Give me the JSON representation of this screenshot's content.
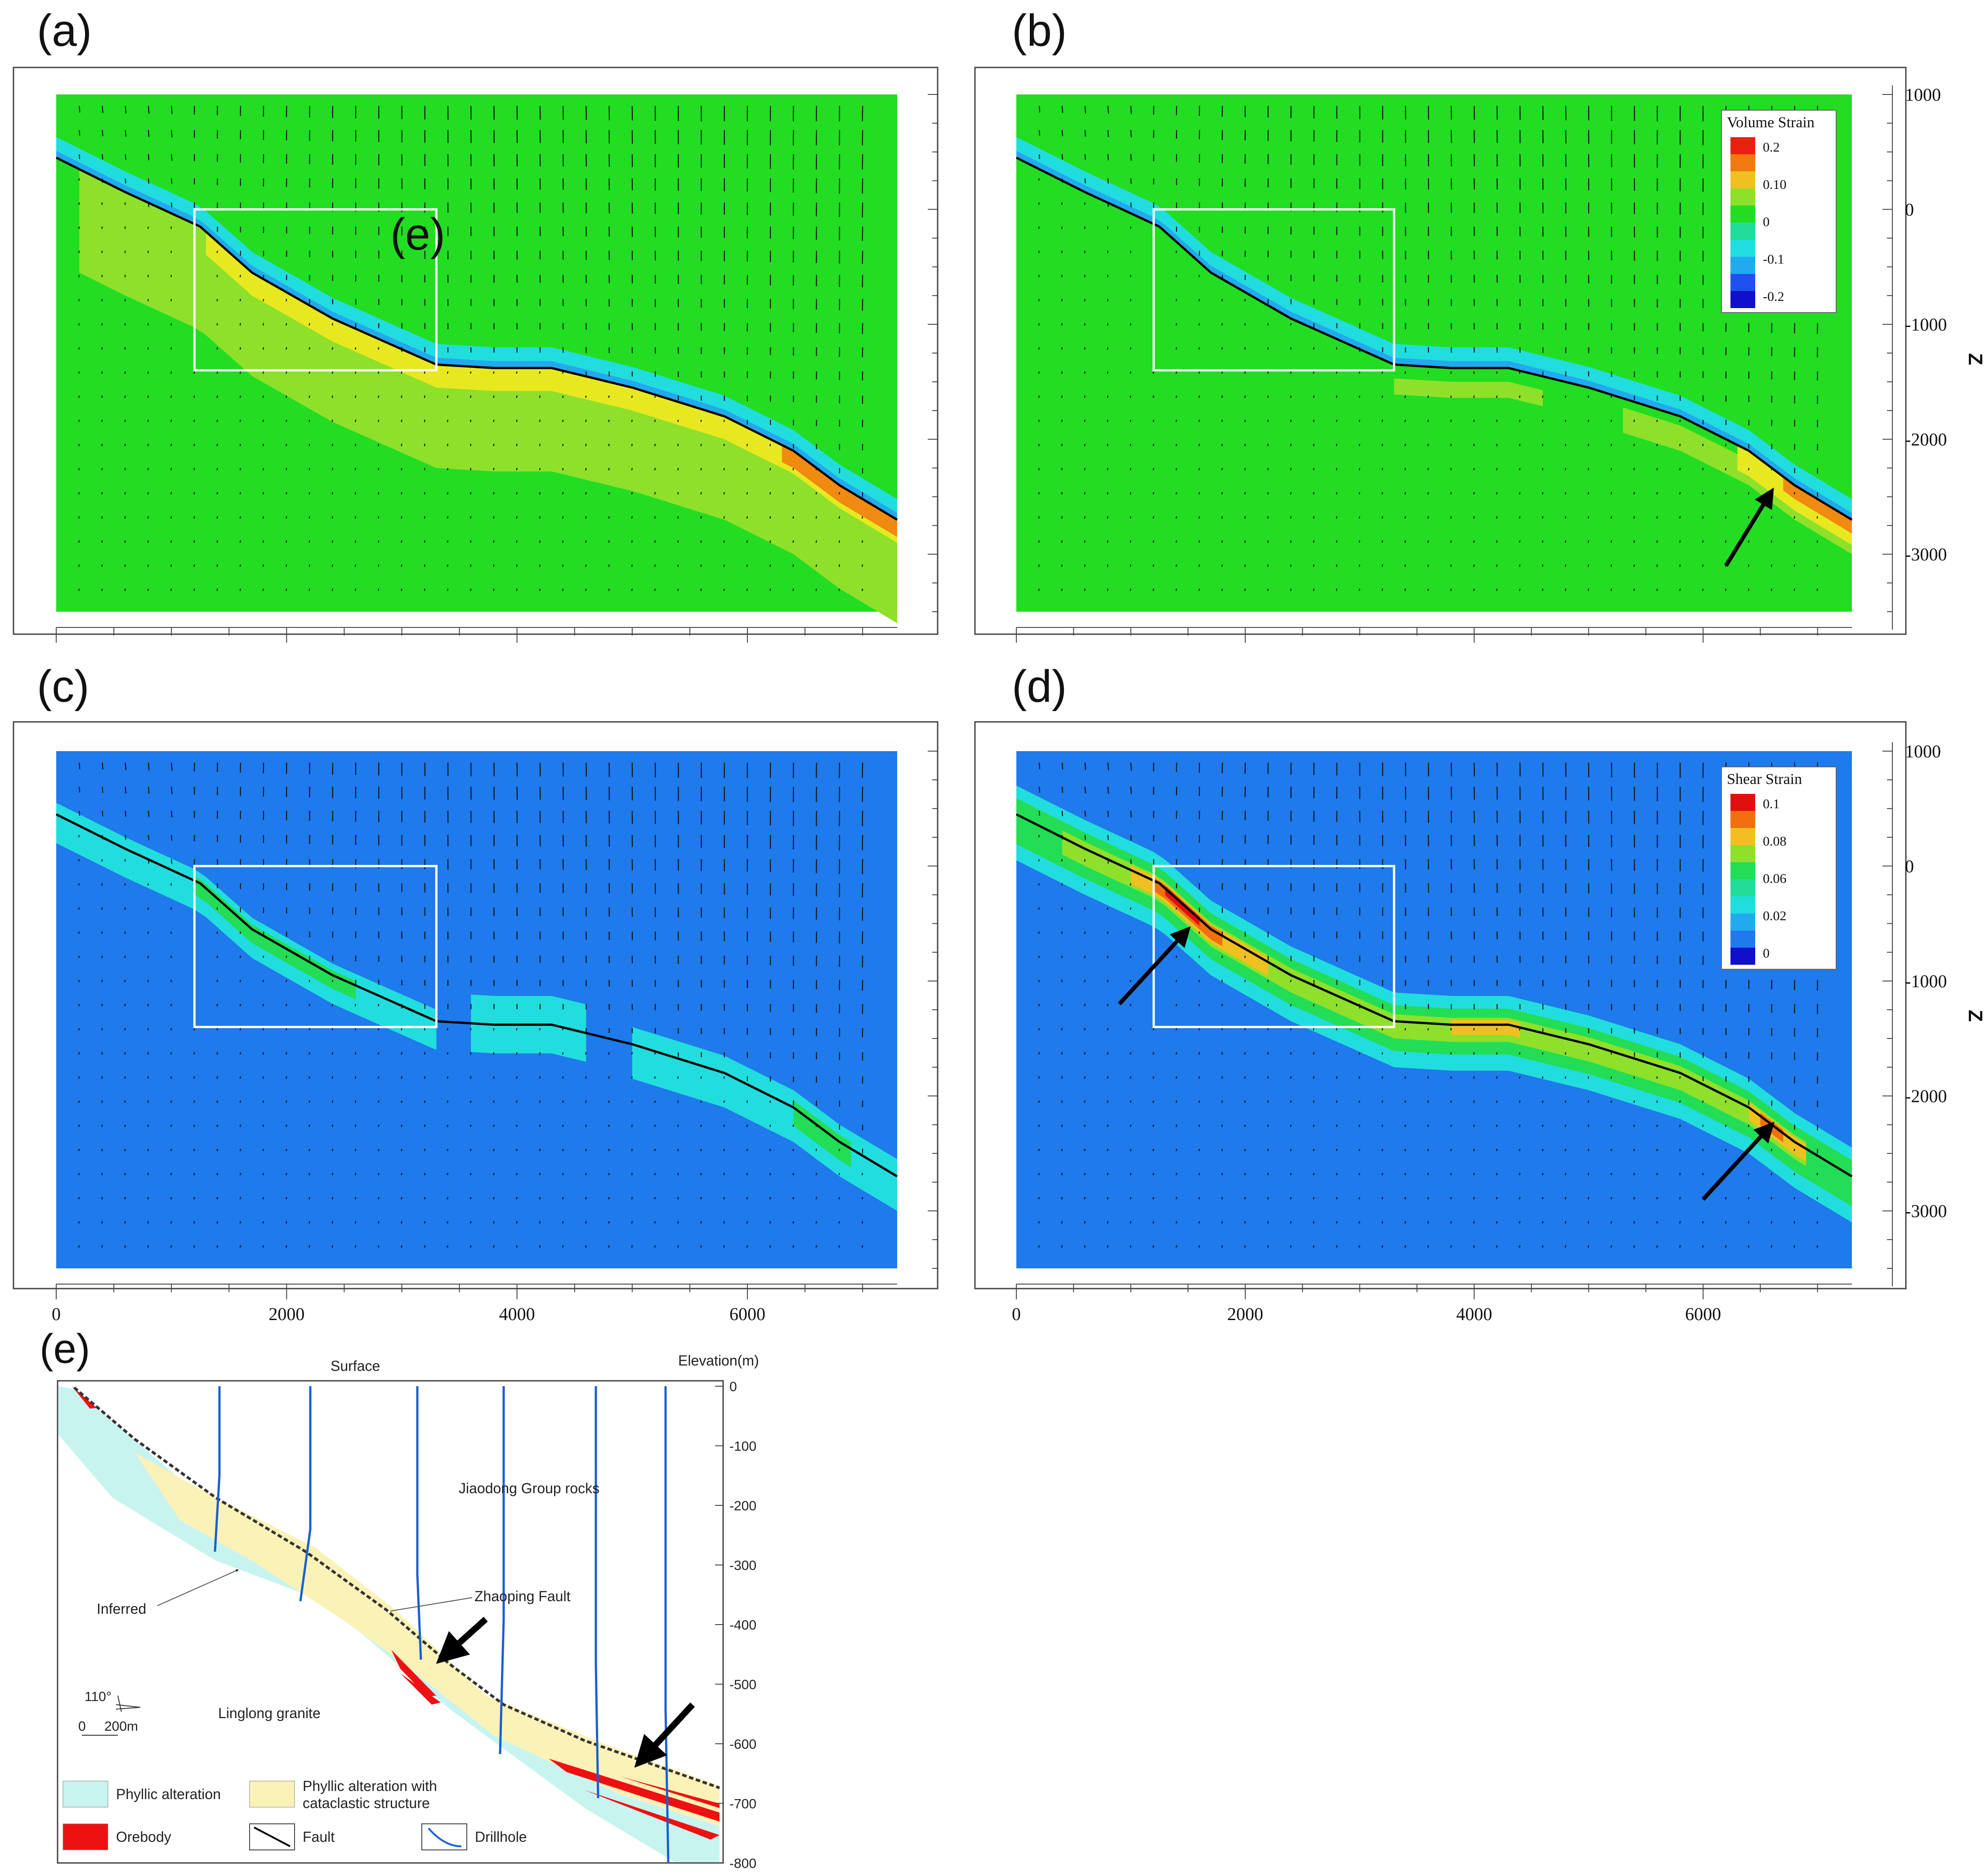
{
  "panels": [
    {
      "id": "a",
      "label": "(a)",
      "field": "volume",
      "inset_label": "(e)",
      "show_x_ticks": false,
      "show_z_ticks": false,
      "legend": null,
      "arrows": []
    },
    {
      "id": "b",
      "label": "(b)",
      "field": "volume",
      "inset_label": "",
      "show_x_ticks": false,
      "show_z_ticks": true,
      "legend": {
        "title": "Volume Strain",
        "values": [
          "0.2",
          "0.10",
          "0",
          "-0.1",
          "-0.2"
        ]
      },
      "arrows": [
        {
          "from": [
            6200,
            -3100
          ],
          "to": [
            6600,
            -2450
          ]
        }
      ]
    },
    {
      "id": "c",
      "label": "(c)",
      "field": "shear_low",
      "inset_label": "",
      "show_x_ticks": true,
      "show_z_ticks": false,
      "legend": null,
      "arrows": []
    },
    {
      "id": "d",
      "label": "(d)",
      "field": "shear",
      "inset_label": "",
      "show_x_ticks": true,
      "show_z_ticks": true,
      "legend": {
        "title": "Shear Strain",
        "values": [
          "0.1",
          "0.08",
          "0.06",
          "0.02",
          "0"
        ]
      },
      "arrows": [
        {
          "from": [
            900,
            -1200
          ],
          "to": [
            1500,
            -550
          ]
        },
        {
          "from": [
            6000,
            -2900
          ],
          "to": [
            6600,
            -2250
          ]
        }
      ]
    }
  ],
  "x_ticks": [
    "0",
    "2000",
    "4000",
    "6000"
  ],
  "z_ticks": [
    "1000",
    "0",
    "-1000",
    "-2000",
    "-3000"
  ],
  "z_axis_label": "Z",
  "colors": {
    "volume": {
      "bg": "#22dd22",
      "comp_pos": "#8ee02a",
      "comp_yel": "#e8e820",
      "comp_org": "#f08a10",
      "comp_red": "#e82010",
      "neg_cyan": "#22dddd",
      "neg_blue": "#22aaee"
    },
    "shear": {
      "bg": "#1f7aeb",
      "c1": "#22dddd",
      "c2": "#22dd55",
      "c3": "#8ee02a",
      "c4": "#f0c020",
      "c5": "#f07010",
      "c6": "#e01010"
    },
    "legend_volume": [
      "#e82010",
      "#f07a10",
      "#f0c020",
      "#8ee02a",
      "#22dd22",
      "#22dd99",
      "#22dddd",
      "#22aaee",
      "#2050ee",
      "#1010cc"
    ],
    "legend_shear": [
      "#e01010",
      "#f07010",
      "#f0c020",
      "#8ee02a",
      "#22dd55",
      "#22dd99",
      "#22dddd",
      "#22aaee",
      "#1f7aeb",
      "#1010cc"
    ]
  },
  "panel_e": {
    "label": "(e)",
    "surface": "Surface",
    "elevation_label": "Elevation(m)",
    "elevation_ticks": [
      "0",
      "-100",
      "-200",
      "-300",
      "-400",
      "-500",
      "-600",
      "-700",
      "-800"
    ],
    "rock_upper": "Jiaodong Group rocks",
    "rock_lower": "Linglong granite",
    "fault_name": "Zhaoping Fault",
    "inferred": "Inferred",
    "compass": "110°",
    "scale_zero": "0",
    "scale_len": "200m",
    "legend": [
      {
        "label": "Phyllic alteration",
        "color": "#c8f4f0"
      },
      {
        "label": "Phyllic alteration with",
        "label2": "cataclastic structure",
        "color": "#fbf2b8"
      },
      {
        "label": "Orebody",
        "color": "#ee1111"
      },
      {
        "label": "Fault",
        "color": "#000000"
      },
      {
        "label": "Drillhole",
        "color": "#1a5fd0"
      }
    ]
  }
}
